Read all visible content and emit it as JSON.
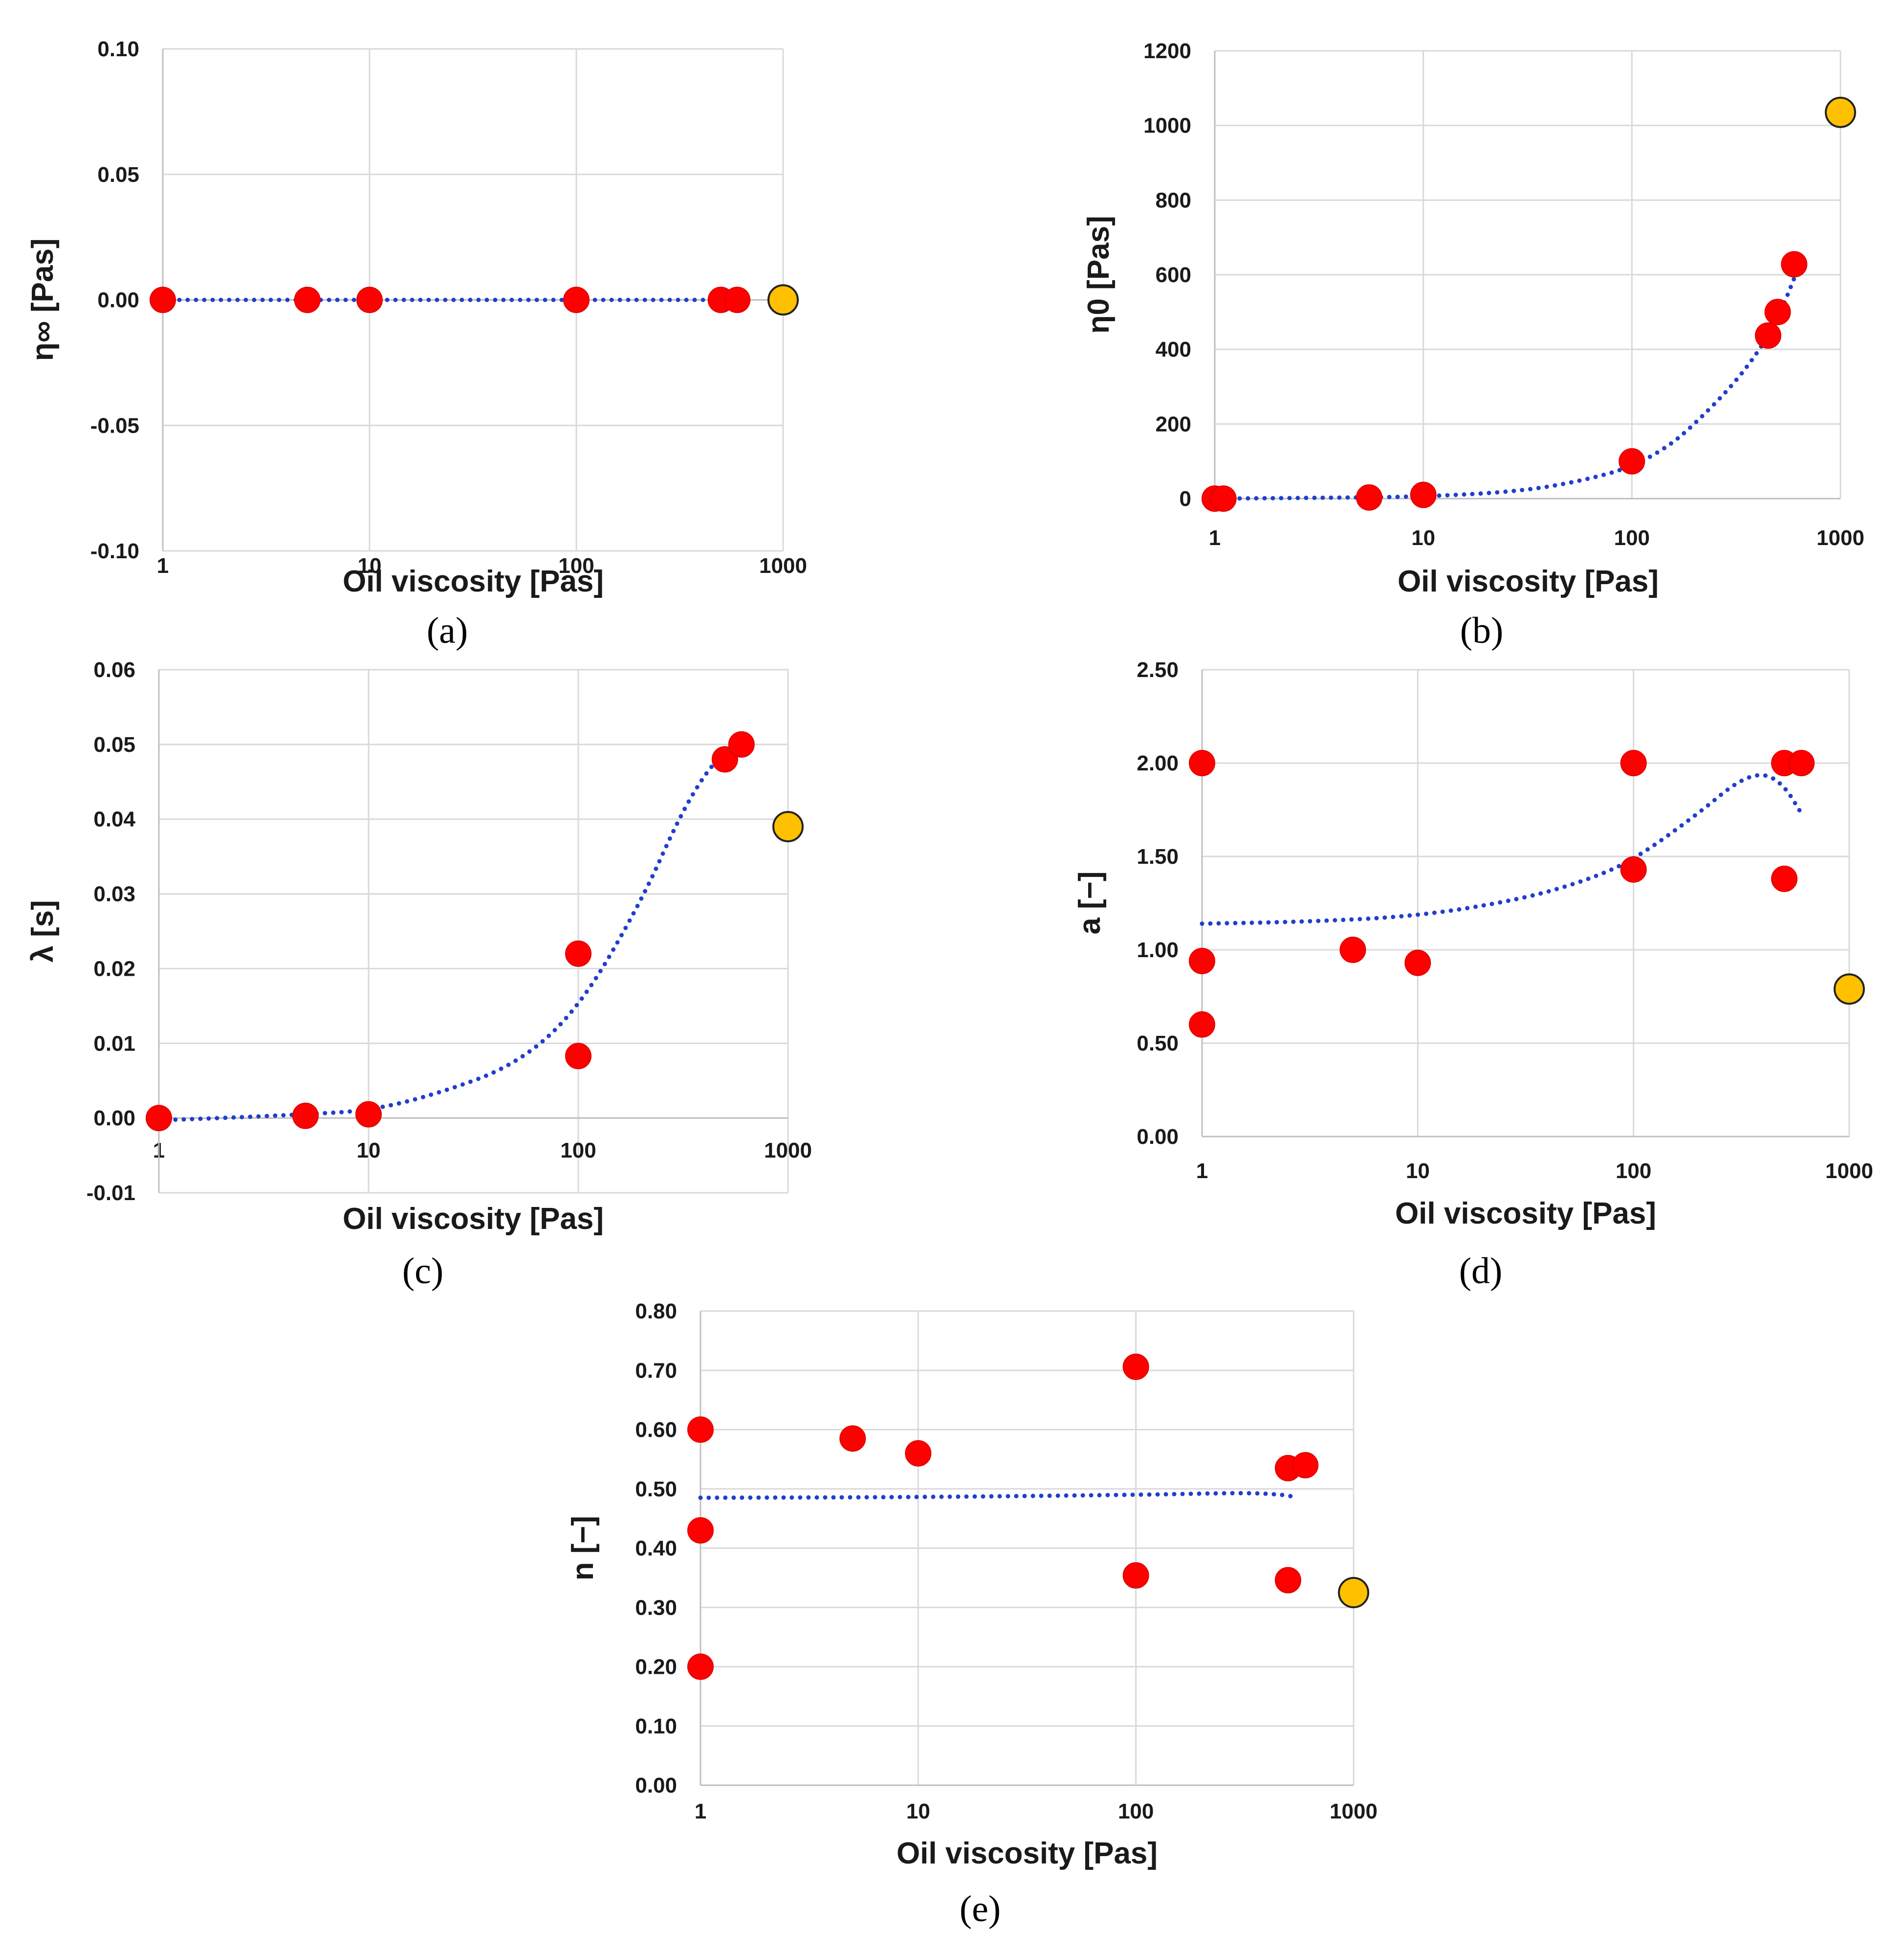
{
  "figure": {
    "colors": {
      "point": "#ff0000",
      "highlight": "#ffc000",
      "trendline": "#1f3fcc",
      "grid": "#d9d9d9"
    }
  },
  "chart_data": [
    {
      "id": "a",
      "type": "scatter",
      "caption": "(a)",
      "xlabel": "Oil viscosity [Pas]",
      "ylabel": "η∞ [Pas]",
      "xscale": "log",
      "xlim": [
        1,
        1000
      ],
      "ylim": [
        -0.1,
        0.1
      ],
      "xticks": [
        "1",
        "10",
        "100",
        "1000"
      ],
      "yticks": [
        "0.10",
        "0.05",
        "0.00",
        "-0.05",
        "-0.10"
      ],
      "xlabel_position": "bottom",
      "grid": true,
      "series": [
        {
          "name": "data",
          "x": [
            1,
            5,
            10,
            100,
            500,
            600
          ],
          "y": [
            0,
            0,
            0,
            0,
            0,
            0
          ]
        },
        {
          "name": "highlight",
          "x": [
            1000
          ],
          "y": [
            0
          ]
        }
      ],
      "trendline": {
        "x": [
          1,
          3,
          10,
          30,
          100,
          300,
          550
        ],
        "y": [
          0,
          0,
          0,
          0,
          0,
          0,
          0
        ]
      }
    },
    {
      "id": "b",
      "type": "scatter",
      "caption": "(b)",
      "xlabel": "Oil viscosity [Pas]",
      "ylabel": "η0 [Pas]",
      "xscale": "log",
      "xlim": [
        1,
        1000
      ],
      "ylim": [
        0,
        1200
      ],
      "xticks": [
        "1",
        "10",
        "100",
        "1000"
      ],
      "yticks": [
        "1200",
        "1000",
        "800",
        "600",
        "400",
        "200",
        "0"
      ],
      "grid": true,
      "series": [
        {
          "name": "data",
          "x": [
            1,
            1.1,
            5.5,
            10,
            100,
            450,
            500,
            600
          ],
          "y": [
            0,
            0,
            3,
            10,
            100,
            437,
            500,
            628
          ]
        },
        {
          "name": "highlight",
          "x": [
            1000
          ],
          "y": [
            1035
          ]
        }
      ],
      "trendline": {
        "x": [
          1,
          3,
          10,
          30,
          60,
          100,
          150,
          200,
          300,
          400,
          500,
          620
        ],
        "y": [
          0,
          2,
          5,
          20,
          50,
          85,
          140,
          200,
          300,
          390,
          480,
          610
        ]
      }
    },
    {
      "id": "c",
      "type": "scatter",
      "caption": "(c)",
      "xlabel": "Oil viscosity [Pas]",
      "ylabel": "λ [s]",
      "xscale": "log",
      "xlim": [
        1,
        1000
      ],
      "ylim": [
        -0.01,
        0.06
      ],
      "xticks": [
        "1",
        "10",
        "100",
        "1000"
      ],
      "yticks": [
        "0.06",
        "0.05",
        "0.04",
        "0.03",
        "0.02",
        "0.01",
        "0.00",
        "-0.01"
      ],
      "grid": true,
      "series": [
        {
          "name": "data",
          "x": [
            1,
            5,
            10,
            100,
            100,
            500,
            600
          ],
          "y": [
            0.0,
            0.0003,
            0.0005,
            0.022,
            0.0083,
            0.048,
            0.05
          ]
        },
        {
          "name": "highlight",
          "x": [
            1000
          ],
          "y": [
            0.039
          ]
        }
      ],
      "trendline": {
        "x": [
          1,
          2,
          5,
          10,
          20,
          50,
          100,
          200,
          300,
          400,
          500,
          550
        ],
        "y": [
          -0.0003,
          0.0,
          0.0005,
          0.001,
          0.003,
          0.007,
          0.0145,
          0.029,
          0.04,
          0.046,
          0.049,
          0.0495
        ]
      }
    },
    {
      "id": "d",
      "type": "scatter",
      "caption": "(d)",
      "xlabel": "Oil viscosity [Pas]",
      "ylabel": "a [−]",
      "xscale": "log",
      "xlim": [
        1,
        1000
      ],
      "ylim": [
        0,
        2.5
      ],
      "xticks": [
        "1",
        "10",
        "100",
        "1000"
      ],
      "yticks": [
        "2.50",
        "2.00",
        "1.50",
        "1.00",
        "0.50",
        "0.00"
      ],
      "grid": true,
      "series": [
        {
          "name": "data",
          "x": [
            1,
            1,
            1,
            5,
            10,
            100,
            100,
            500,
            500,
            600
          ],
          "y": [
            2.0,
            0.94,
            0.6,
            1.0,
            0.93,
            2.0,
            1.43,
            2.0,
            1.38,
            2.0
          ]
        },
        {
          "name": "highlight",
          "x": [
            1000
          ],
          "y": [
            0.79
          ]
        }
      ],
      "trendline": {
        "x": [
          1,
          3,
          10,
          30,
          60,
          100,
          200,
          300,
          400,
          500,
          600
        ],
        "y": [
          1.14,
          1.15,
          1.18,
          1.27,
          1.37,
          1.48,
          1.73,
          1.9,
          1.95,
          1.88,
          1.73
        ]
      }
    },
    {
      "id": "e",
      "type": "scatter",
      "caption": "(e)",
      "xlabel": "Oil viscosity [Pas]",
      "ylabel": "n [−]",
      "xscale": "log",
      "xlim": [
        1,
        1000
      ],
      "ylim": [
        0,
        0.8
      ],
      "xticks": [
        "1",
        "10",
        "100",
        "1000"
      ],
      "yticks": [
        "0.80",
        "0.70",
        "0.60",
        "0.50",
        "0.40",
        "0.30",
        "0.20",
        "0.10",
        "0.00"
      ],
      "grid": true,
      "series": [
        {
          "name": "data",
          "x": [
            1,
            1,
            1,
            5,
            10,
            100,
            100,
            500,
            500,
            600
          ],
          "y": [
            0.6,
            0.43,
            0.2,
            0.585,
            0.56,
            0.706,
            0.354,
            0.535,
            0.346,
            0.54
          ]
        },
        {
          "name": "highlight",
          "x": [
            1000
          ],
          "y": [
            0.325
          ]
        }
      ],
      "trendline": {
        "x": [
          1,
          10,
          100,
          200,
          300,
          400,
          500,
          550
        ],
        "y": [
          0.485,
          0.486,
          0.49,
          0.492,
          0.493,
          0.492,
          0.489,
          0.485
        ]
      }
    }
  ]
}
